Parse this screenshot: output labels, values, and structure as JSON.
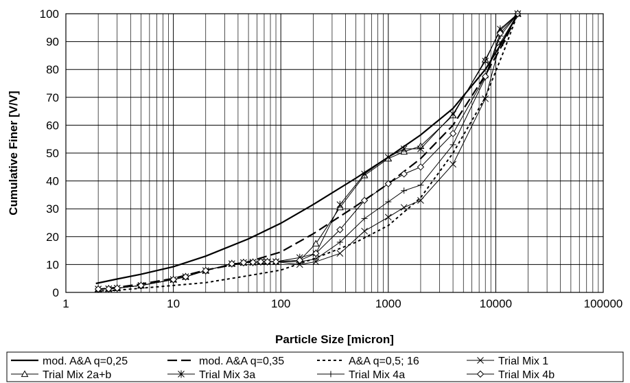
{
  "chart_data": {
    "type": "line",
    "xlabel": "Particle Size [micron]",
    "ylabel": "Cumulative Finer [V/V]",
    "xscale": "log",
    "xlim": [
      1,
      100000
    ],
    "ylim": [
      0,
      100
    ],
    "xticks": [
      "1",
      "10",
      "100",
      "1000",
      "10000",
      "100000"
    ],
    "yticks": [
      "0",
      "10",
      "20",
      "30",
      "40",
      "50",
      "60",
      "70",
      "80",
      "90",
      "100"
    ],
    "grid": true,
    "legend_position": "bottom",
    "series": [
      {
        "name": "mod. A&A q=0,25",
        "style": "solid-thick",
        "marker": "none",
        "x": [
          1.9,
          3,
          5,
          10,
          20,
          50,
          100,
          200,
          500,
          1000,
          2000,
          4000,
          8000,
          12000,
          16000
        ],
        "y": [
          3.2,
          4.8,
          6.5,
          9.2,
          13.0,
          19.2,
          24.8,
          31.5,
          41.0,
          48.5,
          56.5,
          66.0,
          80.0,
          91.0,
          100
        ]
      },
      {
        "name": "mod. A&A q=0,35",
        "style": "dashed-long",
        "marker": "none",
        "x": [
          1.9,
          3,
          5,
          10,
          20,
          50,
          100,
          200,
          500,
          1000,
          2000,
          4000,
          8000,
          12000,
          16000
        ],
        "y": [
          1.0,
          1.8,
          3.0,
          5.0,
          8.0,
          11.0,
          14.5,
          21.0,
          31.0,
          39.0,
          48.0,
          60.0,
          78.0,
          90.0,
          100
        ]
      },
      {
        "name": "A&A q=0,5; 16",
        "style": "dotted",
        "marker": "none",
        "x": [
          1.9,
          3,
          5,
          10,
          20,
          50,
          100,
          200,
          500,
          1000,
          2000,
          4000,
          8000,
          12000,
          16000
        ],
        "y": [
          0.5,
          0.8,
          1.5,
          2.5,
          3.5,
          6.0,
          8.0,
          12.0,
          18.0,
          24.0,
          34.0,
          50.0,
          70.0,
          87.0,
          100
        ]
      },
      {
        "name": "Trial Mix 1",
        "style": "thin",
        "marker": "x",
        "x": [
          2,
          2.5,
          3,
          5,
          10,
          13,
          20,
          35,
          45,
          55,
          65,
          75,
          90,
          150,
          212,
          355,
          600,
          1000,
          1400,
          2000,
          4000,
          8000,
          11000,
          16000
        ],
        "y": [
          1.2,
          1.3,
          1.5,
          2.5,
          4.6,
          5.6,
          7.8,
          10.3,
          10.7,
          10.8,
          11.0,
          11.0,
          11.0,
          10.0,
          11.0,
          14.0,
          22.0,
          27.0,
          30.5,
          33.0,
          46.0,
          69.5,
          89.5,
          100
        ]
      },
      {
        "name": "Trial Mix 2a+b",
        "style": "thin",
        "marker": "triangle",
        "x": [
          2,
          2.5,
          3,
          5,
          10,
          13,
          20,
          35,
          45,
          55,
          65,
          75,
          90,
          150,
          212,
          355,
          600,
          1000,
          1400,
          2000,
          4000,
          8000,
          11000,
          16000
        ],
        "y": [
          1.2,
          1.3,
          1.5,
          2.5,
          4.6,
          5.6,
          7.8,
          10.3,
          10.7,
          10.8,
          11.0,
          11.0,
          11.0,
          11.5,
          17.5,
          30.5,
          42.0,
          48.0,
          50.5,
          52.5,
          63.5,
          83.5,
          94.0,
          100
        ]
      },
      {
        "name": "Trial Mix 3a",
        "style": "thin",
        "marker": "asterisk",
        "x": [
          2,
          2.5,
          3,
          5,
          10,
          13,
          20,
          35,
          45,
          55,
          65,
          75,
          90,
          150,
          212,
          355,
          600,
          1000,
          1400,
          2000,
          4000,
          8000,
          11000,
          16000
        ],
        "y": [
          1.2,
          1.3,
          1.5,
          2.5,
          4.6,
          5.6,
          7.8,
          10.3,
          10.7,
          10.8,
          11.0,
          11.0,
          11.0,
          12.5,
          14.0,
          31.5,
          42.5,
          48.5,
          51.5,
          51.5,
          64.0,
          83.0,
          94.5,
          100
        ]
      },
      {
        "name": "Trial Mix 4a",
        "style": "thin",
        "marker": "plus",
        "x": [
          2,
          2.5,
          3,
          5,
          10,
          13,
          20,
          35,
          45,
          55,
          65,
          75,
          90,
          150,
          212,
          355,
          600,
          1000,
          1400,
          2000,
          4000,
          8000,
          11000,
          16000
        ],
        "y": [
          1.2,
          1.3,
          1.5,
          2.5,
          4.6,
          5.6,
          7.8,
          10.3,
          10.7,
          10.8,
          11.0,
          11.0,
          11.0,
          11.0,
          12.0,
          18.0,
          26.5,
          32.5,
          36.5,
          38.5,
          53.0,
          77.0,
          92.0,
          100
        ]
      },
      {
        "name": "Trial Mix 4b",
        "style": "thin",
        "marker": "diamond",
        "x": [
          2,
          2.5,
          3,
          5,
          10,
          13,
          20,
          35,
          45,
          55,
          65,
          75,
          90,
          150,
          212,
          355,
          600,
          1000,
          1400,
          2000,
          4000,
          8000,
          11000,
          16000
        ],
        "y": [
          1.2,
          1.3,
          1.5,
          2.5,
          4.6,
          5.6,
          7.8,
          10.3,
          10.7,
          10.8,
          11.0,
          11.0,
          11.0,
          11.5,
          14.0,
          22.5,
          33.0,
          39.0,
          42.5,
          45.0,
          57.0,
          77.5,
          93.0,
          100
        ]
      }
    ]
  }
}
